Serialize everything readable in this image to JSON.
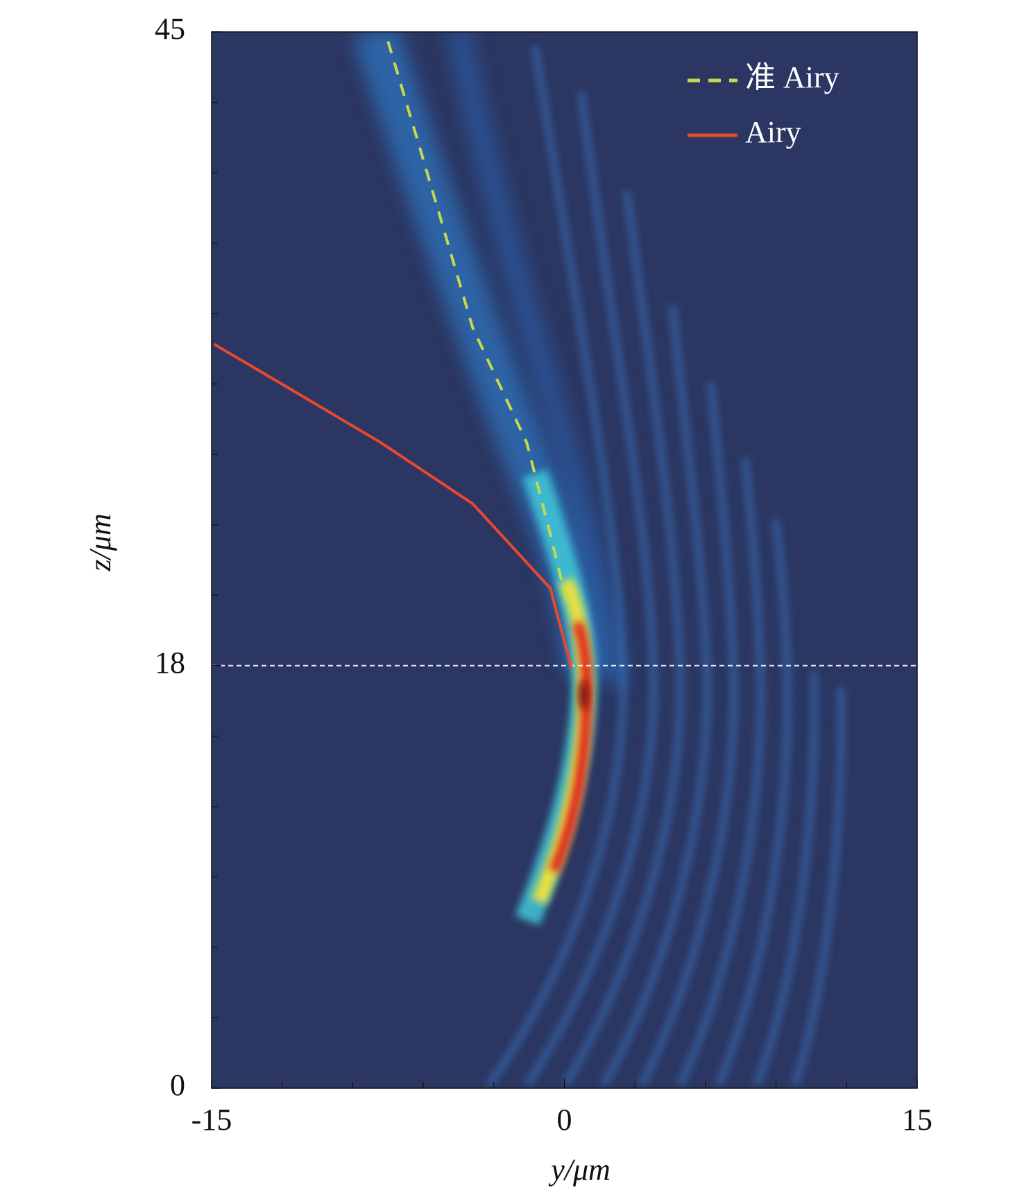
{
  "chart_data": {
    "type": "line",
    "xlabel": "y/μm",
    "ylabel": "z/μm",
    "xlim": [
      -15,
      15
    ],
    "xticks": [
      -15,
      0,
      15
    ],
    "ylim": [
      0,
      45
    ],
    "yticks": [
      0,
      18,
      45
    ],
    "xminorticks": [
      -12,
      -9,
      -6,
      -3,
      3,
      6,
      9,
      12
    ],
    "yminorticks": [
      3,
      6,
      9,
      12,
      15,
      21,
      24,
      27,
      30,
      33,
      36,
      39,
      42
    ],
    "hline": 18,
    "legend": "upper right",
    "series": [
      {
        "name": "准 Airy",
        "color": "#c5d94a",
        "dash": true,
        "x": [
          -7.5,
          -6.1,
          -3.9,
          -1.6,
          -0.6,
          0.2
        ],
        "values": [
          44.6,
          39.9,
          32.4,
          27.5,
          23.6,
          20.3
        ]
      },
      {
        "name": "Airy",
        "color": "#e8482e",
        "dash": false,
        "x": [
          -14.9,
          -11,
          -7.8,
          -3.9,
          -0.6,
          0.3
        ],
        "values": [
          31.7,
          29.4,
          27.5,
          24.9,
          21.3,
          17.9
        ]
      }
    ]
  }
}
